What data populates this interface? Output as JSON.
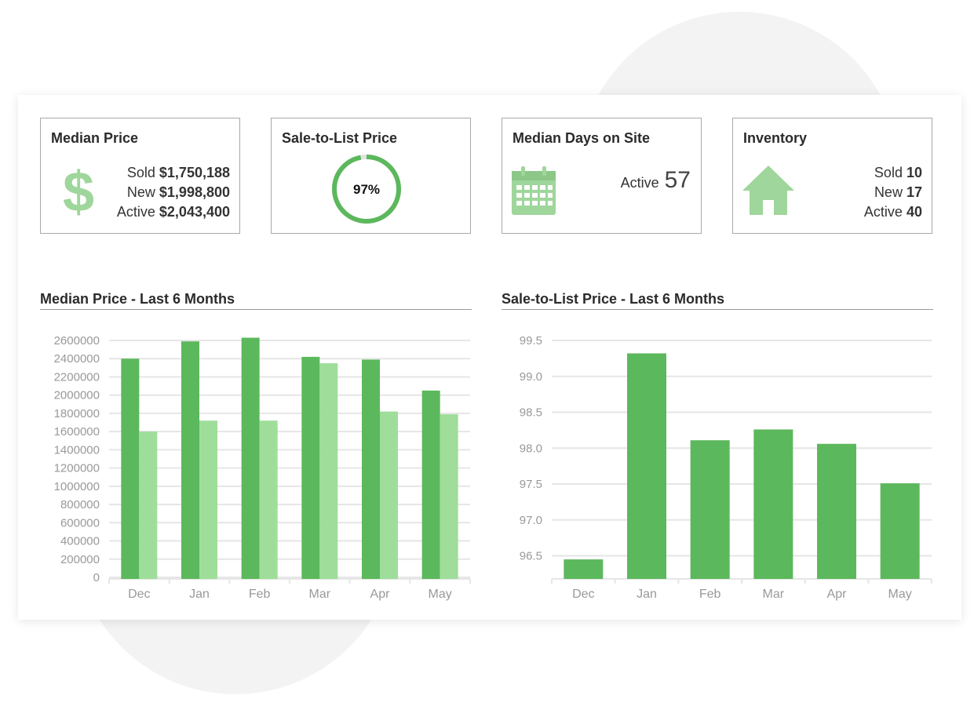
{
  "colors": {
    "primary_green": "#5cb85c",
    "light_green": "#9ede9a",
    "icon_green": "#9fd69b",
    "grid": "#e6e6e6",
    "axis_text": "#999999"
  },
  "stats": {
    "median_price": {
      "title": "Median Price",
      "icon": "dollar-sign-icon",
      "sold_label": "Sold",
      "sold_value": "$1,750,188",
      "new_label": "New",
      "new_value": "$1,998,800",
      "active_label": "Active",
      "active_value": "$2,043,400"
    },
    "sale_to_list": {
      "title": "Sale-to-List Price",
      "percent_text": "97%",
      "percent_value": 97
    },
    "median_days": {
      "title": "Median Days on Site",
      "icon": "calendar-icon",
      "active_label": "Active",
      "active_value": "57"
    },
    "inventory": {
      "title": "Inventory",
      "icon": "house-icon",
      "sold_label": "Sold",
      "sold_value": "10",
      "new_label": "New",
      "new_value": "17",
      "active_label": "Active",
      "active_value": "40"
    }
  },
  "chart_data": [
    {
      "type": "bar",
      "title": "Median Price - Last 6 Months",
      "categories": [
        "Dec",
        "Jan",
        "Feb",
        "Mar",
        "Apr",
        "May"
      ],
      "series": [
        {
          "values": [
            2400000,
            2590000,
            2630000,
            2420000,
            2390000,
            2050000
          ],
          "color": "#5cb85c"
        },
        {
          "values": [
            1600000,
            1720000,
            1720000,
            2350000,
            1820000,
            1790000
          ],
          "color": "#9ede9a"
        }
      ],
      "ylim": [
        0,
        2600000
      ],
      "yticks": [
        "0",
        "200000",
        "400000",
        "600000",
        "800000",
        "1000000",
        "1200000",
        "1400000",
        "1600000",
        "1800000",
        "2000000",
        "2200000",
        "2400000",
        "2600000"
      ],
      "grid": true
    },
    {
      "type": "bar",
      "title": "Sale-to-List Price - Last 6 Months",
      "categories": [
        "Dec",
        "Jan",
        "Feb",
        "Mar",
        "Apr",
        "May"
      ],
      "series": [
        {
          "values": [
            96.45,
            99.32,
            98.11,
            98.26,
            98.06,
            97.51
          ],
          "color": "#5cb85c"
        }
      ],
      "ylim": [
        96.2,
        99.5
      ],
      "yticks": [
        "96.5",
        "97.0",
        "97.5",
        "98.0",
        "98.5",
        "99.0",
        "99.5"
      ],
      "grid": true
    }
  ]
}
